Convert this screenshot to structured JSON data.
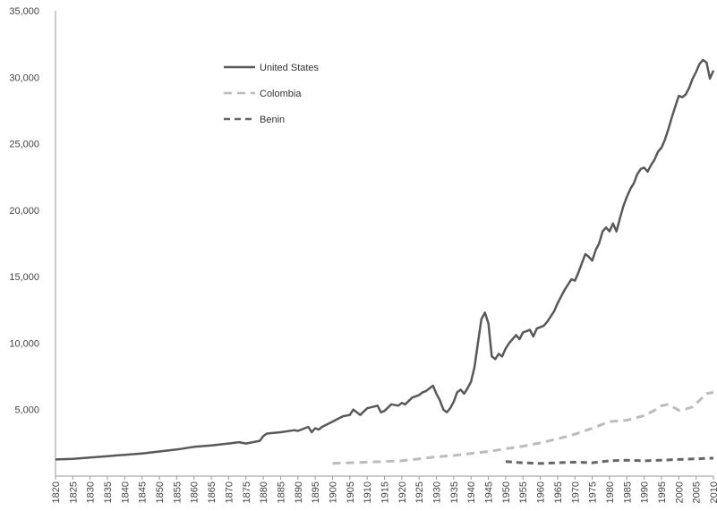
{
  "chart_data": {
    "type": "line",
    "title": "",
    "xlabel": "",
    "ylabel": "",
    "xlim": [
      1820,
      2010
    ],
    "ylim": [
      0,
      35000
    ],
    "y_ticks": [
      {
        "value": 5000,
        "label": "5,000"
      },
      {
        "value": 10000,
        "label": "10,000"
      },
      {
        "value": 15000,
        "label": "15,000"
      },
      {
        "value": 20000,
        "label": "20,000"
      },
      {
        "value": 25000,
        "label": "25,000"
      },
      {
        "value": 30000,
        "label": "30,000"
      },
      {
        "value": 35000,
        "label": "35,000"
      }
    ],
    "x_ticks": [
      "1820",
      "1825",
      "1830",
      "1835",
      "1840",
      "1845",
      "1850",
      "1855",
      "1860",
      "1865",
      "1870",
      "1875",
      "1880",
      "1885",
      "1890",
      "1895",
      "1900",
      "1905",
      "1910",
      "1915",
      "1920",
      "1925",
      "1930",
      "1935",
      "1940",
      "1945",
      "1950",
      "1955",
      "1960",
      "1965",
      "1970",
      "1975",
      "1980",
      "1985",
      "1990",
      "1995",
      "2000",
      "2005",
      "2010"
    ],
    "grid": false,
    "legend_position": "top-left",
    "series": [
      {
        "name": "United States",
        "color": "#595959",
        "style": "solid",
        "x": [
          1820,
          1825,
          1830,
          1835,
          1840,
          1845,
          1850,
          1855,
          1860,
          1865,
          1870,
          1873,
          1875,
          1879,
          1880,
          1881,
          1885,
          1889,
          1890,
          1893,
          1894,
          1895,
          1896,
          1897,
          1900,
          1903,
          1905,
          1906,
          1908,
          1910,
          1913,
          1914,
          1915,
          1917,
          1919,
          1920,
          1921,
          1923,
          1925,
          1926,
          1927,
          1929,
          1930,
          1931,
          1932,
          1933,
          1934,
          1935,
          1936,
          1937,
          1938,
          1939,
          1940,
          1941,
          1942,
          1943,
          1944,
          1945,
          1946,
          1947,
          1948,
          1949,
          1950,
          1951,
          1952,
          1953,
          1954,
          1955,
          1956,
          1957,
          1958,
          1959,
          1960,
          1961,
          1962,
          1963,
          1964,
          1965,
          1966,
          1967,
          1968,
          1969,
          1970,
          1971,
          1972,
          1973,
          1974,
          1975,
          1976,
          1977,
          1978,
          1979,
          1980,
          1981,
          1982,
          1983,
          1984,
          1985,
          1986,
          1987,
          1988,
          1989,
          1990,
          1991,
          1992,
          1993,
          1994,
          1995,
          1996,
          1997,
          1998,
          1999,
          2000,
          2001,
          2002,
          2003,
          2004,
          2005,
          2006,
          2007,
          2008,
          2009,
          2010
        ],
        "values": [
          1250,
          1300,
          1400,
          1500,
          1600,
          1700,
          1850,
          2000,
          2200,
          2300,
          2450,
          2550,
          2450,
          2650,
          3000,
          3200,
          3300,
          3450,
          3400,
          3700,
          3300,
          3600,
          3500,
          3700,
          4100,
          4500,
          4600,
          5000,
          4600,
          5100,
          5300,
          4800,
          4900,
          5400,
          5300,
          5500,
          5400,
          5900,
          6100,
          6300,
          6400,
          6800,
          6200,
          5700,
          5000,
          4800,
          5100,
          5600,
          6300,
          6500,
          6200,
          6600,
          7100,
          8200,
          10000,
          11800,
          12300,
          11500,
          9000,
          8800,
          9200,
          9000,
          9600,
          10000,
          10300,
          10600,
          10300,
          10800,
          10900,
          11000,
          10500,
          11100,
          11200,
          11300,
          11600,
          12000,
          12400,
          13000,
          13500,
          14000,
          14400,
          14800,
          14700,
          15300,
          16000,
          16700,
          16500,
          16200,
          17000,
          17500,
          18400,
          18700,
          18400,
          19000,
          18400,
          19400,
          20300,
          21000,
          21600,
          22000,
          22700,
          23100,
          23200,
          22900,
          23400,
          23800,
          24400,
          24700,
          25300,
          26100,
          27000,
          27800,
          28600,
          28500,
          28700,
          29200,
          29900,
          30400,
          31000,
          31300,
          31100,
          29900,
          30500
        ]
      },
      {
        "name": "Colombia",
        "color": "#bcbcbc",
        "style": "dashed",
        "x": [
          1900,
          1905,
          1910,
          1915,
          1920,
          1925,
          1930,
          1935,
          1940,
          1945,
          1950,
          1955,
          1960,
          1965,
          1970,
          1975,
          1980,
          1985,
          1990,
          1993,
          1995,
          1997,
          1999,
          2000,
          2002,
          2004,
          2006,
          2008,
          2010
        ],
        "values": [
          950,
          1000,
          1050,
          1100,
          1150,
          1300,
          1450,
          1550,
          1700,
          1850,
          2050,
          2250,
          2500,
          2800,
          3150,
          3600,
          4100,
          4200,
          4550,
          4950,
          5300,
          5400,
          5100,
          4950,
          5050,
          5200,
          5700,
          6200,
          6300
        ]
      },
      {
        "name": "Benin",
        "color": "#666666",
        "style": "dashed",
        "x": [
          1950,
          1955,
          1960,
          1965,
          1970,
          1975,
          1980,
          1985,
          1990,
          1995,
          2000,
          2005,
          2010
        ],
        "values": [
          1100,
          1000,
          950,
          1000,
          1050,
          1000,
          1150,
          1200,
          1150,
          1200,
          1250,
          1300,
          1350
        ]
      }
    ]
  }
}
